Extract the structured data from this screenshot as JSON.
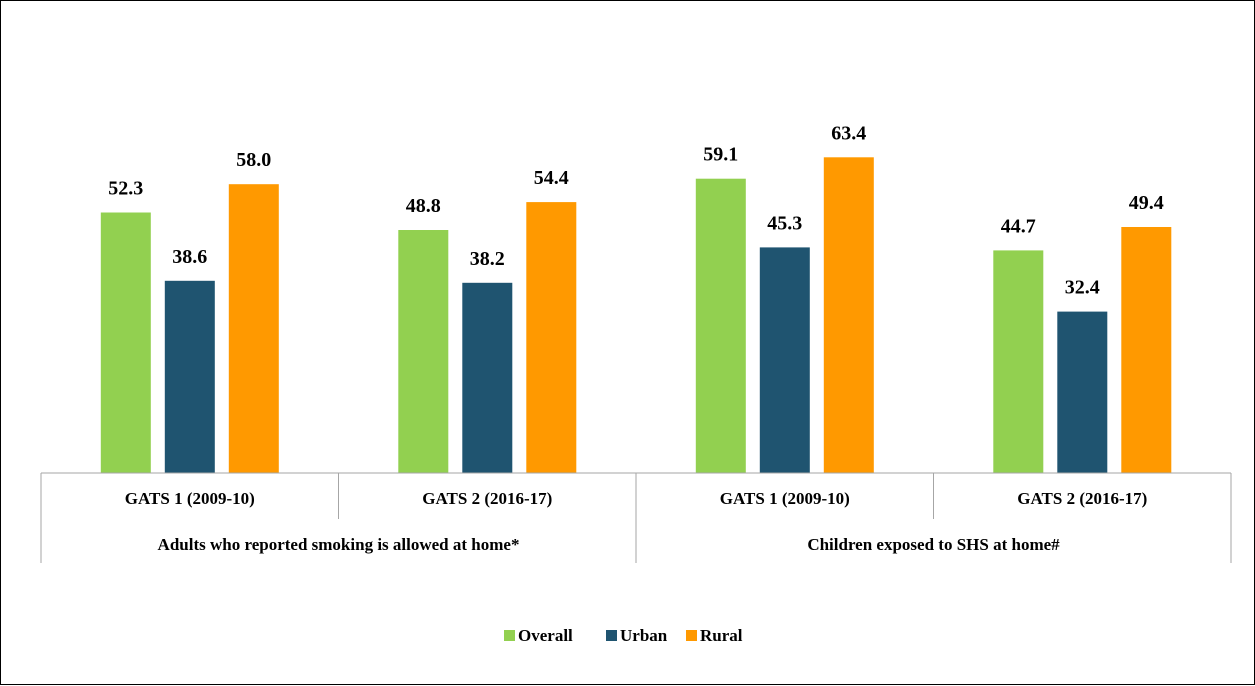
{
  "chart_data": {
    "type": "bar",
    "group_labels": [
      "Adults who reported smoking is allowed at home*",
      "Children exposed to SHS at home#"
    ],
    "categories": [
      "GATS 1 (2009-10)",
      "GATS 2 (2016-17)",
      "GATS 1 (2009-10)",
      "GATS 2 (2016-17)"
    ],
    "category_group": [
      0,
      0,
      1,
      1
    ],
    "series": [
      {
        "name": "Overall",
        "color": "#92D050",
        "values": [
          52.3,
          48.8,
          59.1,
          44.7
        ]
      },
      {
        "name": "Urban",
        "color": "#1F5470",
        "values": [
          38.6,
          38.2,
          45.3,
          32.4
        ]
      },
      {
        "name": "Rural",
        "color": "#FF9900",
        "values": [
          58.0,
          54.4,
          63.4,
          49.4
        ]
      }
    ],
    "value_labels": [
      [
        "52.3",
        "48.8",
        "59.1",
        "44.7"
      ],
      [
        "38.6",
        "38.2",
        "45.3",
        "32.4"
      ],
      [
        "58.0",
        "54.4",
        "63.4",
        "49.4"
      ]
    ],
    "ylim": [
      0,
      65
    ],
    "legend": "bottom",
    "grid": false
  }
}
